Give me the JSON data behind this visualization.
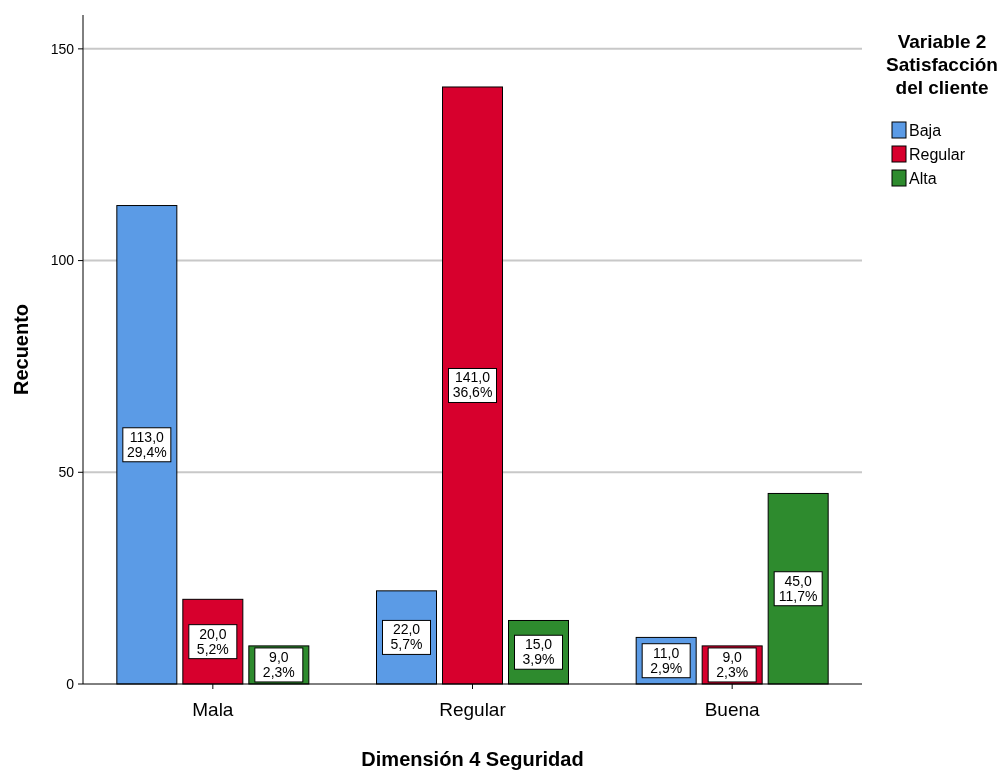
{
  "chart_data": {
    "type": "bar",
    "xlabel": "Dimensión 4 Seguridad",
    "ylabel": "Recuento",
    "legend_title": "Variable 2\nSatisfacción\ndel cliente",
    "categories": [
      "Mala",
      "Regular",
      "Buena"
    ],
    "series": [
      {
        "name": "Baja",
        "color": "#5b9be6",
        "values": [
          113,
          22,
          11
        ],
        "value_labels": [
          "113,0\n29,4%",
          "22,0\n5,7%",
          "11,0\n2,9%"
        ]
      },
      {
        "name": "Regular",
        "color": "#d7002d",
        "values": [
          20,
          141,
          9
        ],
        "value_labels": [
          "20,0\n5,2%",
          "141,0\n36,6%",
          "9,0\n2,3%"
        ]
      },
      {
        "name": "Alta",
        "color": "#2e8b2e",
        "values": [
          9,
          15,
          45
        ],
        "value_labels": [
          "9,0\n2,3%",
          "15,0\n3,9%",
          "45,0\n11,7%"
        ]
      }
    ],
    "ylim": [
      0,
      158
    ],
    "yticks": [
      0,
      50,
      100,
      150
    ],
    "grid": "y",
    "legend": "top right"
  }
}
